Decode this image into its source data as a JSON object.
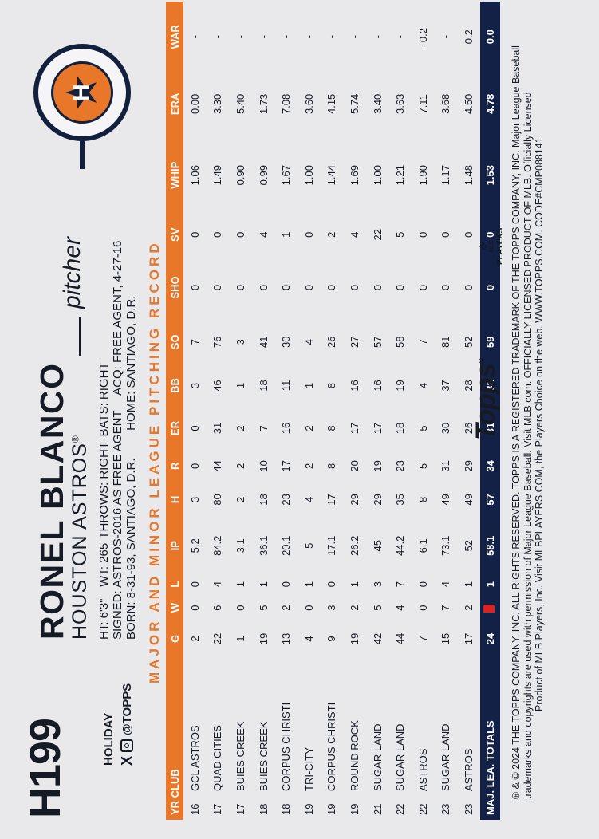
{
  "card_number": "H199",
  "set_name": "HOLIDAY",
  "social_handle": "@TOPPS",
  "player_name": "RONEL BLANCO",
  "team": "HOUSTON ASTROS",
  "team_suffix": "®",
  "position": "pitcher",
  "bio": {
    "ht": "HT: 6'3\"",
    "wt": "WT: 265",
    "throws": "THROWS: RIGHT",
    "bats": "BATS: RIGHT",
    "signed": "SIGNED: ASTROS-2016 AS FREE AGENT",
    "acq": "ACQ: FREE AGENT, 4-27-16",
    "born": "BORN: 8-31-93, SANTIAGO, D.R.",
    "home": "HOME: SANTIAGO, D.R."
  },
  "section_title": "MAJOR AND MINOR LEAGUE PITCHING RECORD",
  "table": {
    "headers": [
      "YR",
      "CLUB",
      "G",
      "W",
      "L",
      "IP",
      "H",
      "R",
      "ER",
      "BB",
      "SO",
      "SHO",
      "SV",
      "WHIP",
      "ERA",
      "WAR"
    ],
    "header_yr_club": "YR CLUB",
    "rows": [
      [
        "16",
        "GCL ASTROS",
        "2",
        "0",
        "0",
        "5.2",
        "3",
        "0",
        "0",
        "3",
        "7",
        "0",
        "0",
        "1.06",
        "0.00",
        "-"
      ],
      [
        "17",
        "QUAD CITIES",
        "22",
        "6",
        "4",
        "84.2",
        "80",
        "44",
        "31",
        "46",
        "76",
        "0",
        "0",
        "1.49",
        "3.30",
        "-"
      ],
      [
        "17",
        "BUIES CREEK",
        "1",
        "0",
        "1",
        "3.1",
        "2",
        "2",
        "2",
        "1",
        "3",
        "0",
        "0",
        "0.90",
        "5.40",
        "-"
      ],
      [
        "18",
        "BUIES CREEK",
        "19",
        "5",
        "1",
        "36.1",
        "18",
        "10",
        "7",
        "18",
        "41",
        "0",
        "4",
        "0.99",
        "1.73",
        "-"
      ],
      [
        "18",
        "CORPUS CHRISTI",
        "13",
        "2",
        "0",
        "20.1",
        "23",
        "17",
        "16",
        "11",
        "30",
        "0",
        "1",
        "1.67",
        "7.08",
        "-"
      ],
      [
        "19",
        "TRI-CITY",
        "4",
        "0",
        "1",
        "5",
        "4",
        "2",
        "2",
        "1",
        "4",
        "0",
        "0",
        "1.00",
        "3.60",
        "-"
      ],
      [
        "19",
        "CORPUS CHRISTI",
        "9",
        "3",
        "0",
        "17.1",
        "17",
        "8",
        "8",
        "8",
        "26",
        "0",
        "2",
        "1.44",
        "4.15",
        "-"
      ],
      [
        "19",
        "ROUND ROCK",
        "19",
        "2",
        "1",
        "26.2",
        "29",
        "20",
        "17",
        "16",
        "27",
        "0",
        "4",
        "1.69",
        "5.74",
        "-"
      ],
      [
        "21",
        "SUGAR LAND",
        "42",
        "5",
        "3",
        "45",
        "29",
        "19",
        "17",
        "16",
        "57",
        "0",
        "22",
        "1.00",
        "3.40",
        "-"
      ],
      [
        "22",
        "SUGAR LAND",
        "44",
        "4",
        "7",
        "44.2",
        "35",
        "23",
        "18",
        "19",
        "58",
        "0",
        "5",
        "1.21",
        "3.63",
        "-"
      ],
      [
        "22",
        "ASTROS",
        "7",
        "0",
        "0",
        "6.1",
        "8",
        "5",
        "5",
        "4",
        "7",
        "0",
        "0",
        "1.90",
        "7.11",
        "-0.2"
      ],
      [
        "23",
        "SUGAR LAND",
        "15",
        "7",
        "4",
        "73.1",
        "49",
        "31",
        "30",
        "37",
        "81",
        "0",
        "0",
        "1.17",
        "3.68",
        "-"
      ],
      [
        "23",
        "ASTROS",
        "17",
        "2",
        "1",
        "52",
        "49",
        "29",
        "26",
        "28",
        "52",
        "0",
        "0",
        "1.48",
        "4.50",
        "0.2"
      ]
    ],
    "totals": [
      "MAJ. LEA. TOTALS",
      "24",
      "2",
      "1",
      "58.1",
      "57",
      "34",
      "31",
      "32",
      "59",
      "0",
      "0",
      "1.53",
      "4.78",
      "0.0"
    ]
  },
  "legal": {
    "line1": "® & © 2024 THE TOPPS COMPANY, INC. ALL RIGHTS RESERVED. TOPPS IS A REGISTERED TRADEMARK OF THE TOPPS COMPANY, INC. Major League Baseball",
    "line2": "trademarks and copyrights are used with permission of Major League Baseball. Visit MLB.com. OFFICIALLY LICENSED PRODUCT OF MLB. Officially Licensed",
    "line3": "Product of MLB Players, Inc. Visit MLBPLAYERS.COM, the Players Choice on the web. WWW.TOPPS.COM. CODE#CMP088141"
  },
  "logos": {
    "topps": "Topps",
    "topps_mark": "®",
    "players": "PLAYERS",
    "players_prefix": "MLB"
  },
  "colors": {
    "orange": "#e8772a",
    "navy": "#142146",
    "ink": "#151a25",
    "card_bg": "#e9e9ec"
  }
}
